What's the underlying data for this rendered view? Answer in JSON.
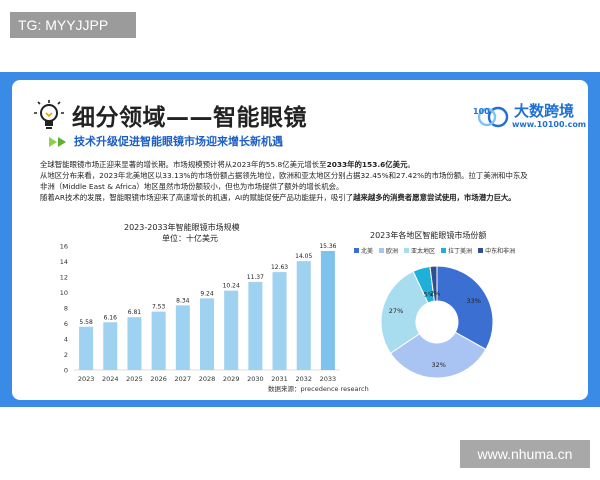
{
  "watermark_top": "TG: MYYJJPP",
  "watermark_bottom": "www.nhuma.cn",
  "slide": {
    "title": "细分领域——智能眼镜",
    "subtitle": "技术升级促进智能眼镜市场迎来增长新机遇",
    "logo_text": "大数跨境",
    "logo_mark": "100",
    "logo_url": "www.10100.com",
    "paragraphs": {
      "p1_a": "全球智能眼镜市场正迎来显著的增长期。市场规模预计将从2023年的55.8亿美元增长至",
      "p1_b": "2033年的153.6亿美元",
      "p1_c": "。",
      "p2": "从地区分布来看，2023年北美地区以33.13%的市场份额占据领先地位，欧洲和亚太地区分别占据32.45%和27.42%的市场份额。拉丁美洲和中东及",
      "p3": "非洲（Middle East & Africa）地区虽然市场份额较小，但也为市场提供了额外的增长机会。",
      "p4_a": "随着AR技术的发展，智能眼镜市场迎来了高速增长的机遇，AI的赋能促使产品功能提升，吸引了",
      "p4_b": "越来越多的消费者愿意尝试使用，市场潜力巨大。"
    },
    "source": "数据来源：precedence research"
  },
  "chart_data": [
    {
      "type": "bar",
      "title": "2023-2033年智能眼镜市场规模",
      "subtitle": "单位：十亿美元",
      "categories": [
        "2023",
        "2024",
        "2025",
        "2026",
        "2027",
        "2028",
        "2029",
        "2030",
        "2031",
        "2032",
        "2033"
      ],
      "values": [
        5.58,
        6.16,
        6.81,
        7.53,
        8.34,
        9.24,
        10.24,
        11.37,
        12.63,
        14.05,
        15.36
      ],
      "value_labels": [
        "5.58",
        "6.16",
        "6.81",
        "7.53",
        "8.34",
        "9.24",
        "10.24",
        "11.37",
        "12.63",
        "14.05",
        "15.36"
      ],
      "yticks": [
        "0",
        "2",
        "4",
        "6",
        "8",
        "10",
        "12",
        "14",
        "16"
      ],
      "ylim": [
        0,
        16
      ],
      "bar_color": "#9fd1f0",
      "bar_color_last": "#7ec2ee"
    },
    {
      "type": "pie",
      "title": "2023年各地区智能眼镜市场份额",
      "slices": [
        {
          "name": "北美",
          "value": 33.13,
          "label": "33%",
          "color": "#3b6fd1"
        },
        {
          "name": "欧洲",
          "value": 32.45,
          "label": "32%",
          "color": "#a9c4f2"
        },
        {
          "name": "亚太地区",
          "value": 27.42,
          "label": "27%",
          "color": "#a8dcef"
        },
        {
          "name": "拉丁美洲",
          "value": 5.0,
          "label": "5%",
          "color": "#1fb0d9"
        },
        {
          "name": "中东和非洲",
          "value": 2.0,
          "label": "2%",
          "color": "#2f4f8f"
        }
      ],
      "legend_position": "top"
    }
  ]
}
